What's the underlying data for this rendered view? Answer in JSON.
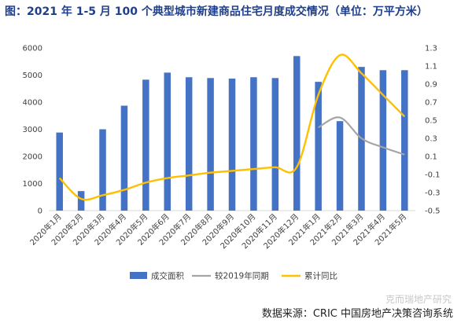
{
  "title": "图：2021 年 1-5 月 100 个典型城市新建商品住宅月度成交情况（单位：万平方米）",
  "source": "数据来源：CRIC 中国房地产决策咨询系统",
  "watermark": "克而瑞地产研究",
  "colors": {
    "bar": "#4472c4",
    "yoy2019": "#a5a5a5",
    "cumulative": "#ffc000"
  },
  "chart_data": {
    "type": "bar",
    "categories": [
      "2020年1月",
      "2020年2月",
      "2020年3月",
      "2020年4月",
      "2020年5月",
      "2020年6月",
      "2020年7月",
      "2020年8月",
      "2020年9月",
      "2020年10月",
      "2020年11月",
      "2020年12月",
      "2021年1月",
      "2021年2月",
      "2021年3月",
      "2021年4月",
      "2021年5月"
    ],
    "series": [
      {
        "name": "成交面积",
        "type": "bar",
        "axis": "left",
        "values": [
          2880,
          720,
          3000,
          3870,
          4830,
          5090,
          4920,
          4890,
          4870,
          4920,
          4890,
          5700,
          4750,
          3300,
          5300,
          5180,
          5180
        ]
      },
      {
        "name": "较2019年同期",
        "type": "line",
        "axis": "right",
        "values": [
          null,
          null,
          null,
          null,
          null,
          null,
          null,
          null,
          null,
          null,
          null,
          null,
          0.42,
          0.53,
          0.3,
          0.2,
          0.12
        ]
      },
      {
        "name": "累计同比",
        "type": "line",
        "axis": "right",
        "values": [
          -0.14,
          -0.37,
          -0.33,
          -0.27,
          -0.19,
          -0.14,
          -0.11,
          -0.08,
          -0.06,
          -0.04,
          -0.02,
          -0.02,
          0.78,
          1.22,
          1.02,
          0.78,
          0.54
        ]
      }
    ],
    "left_axis": {
      "min": 0,
      "max": 6000,
      "ticks": [
        0,
        1000,
        2000,
        3000,
        4000,
        5000,
        6000
      ]
    },
    "right_axis": {
      "min": -0.5,
      "max": 1.3,
      "ticks": [
        "-0.5",
        "-0.3",
        "-0.1",
        "0.1",
        "0.3",
        "0.5",
        "0.7",
        "0.9",
        "1.1",
        "1.3"
      ]
    },
    "grid": false,
    "legend_position": "bottom"
  }
}
